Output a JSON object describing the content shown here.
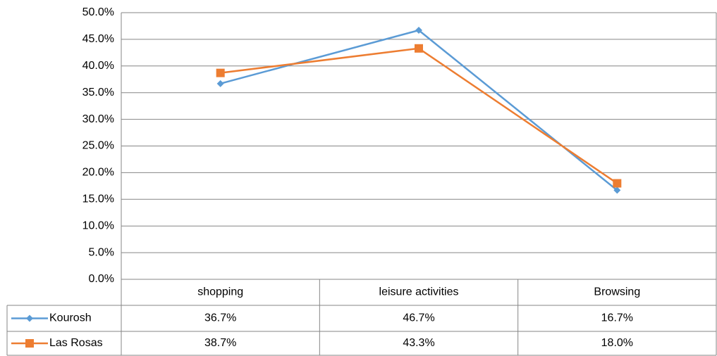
{
  "chart_data": {
    "type": "line",
    "categories": [
      "shopping",
      "leisure activities",
      "Browsing"
    ],
    "series": [
      {
        "name": "Kourosh",
        "color": "#5b9bd5",
        "marker": "diamond",
        "values": [
          36.7,
          46.7,
          16.7
        ],
        "value_labels": [
          "36.7%",
          "46.7%",
          "16.7%"
        ]
      },
      {
        "name": "Las Rosas",
        "color": "#ed7d31",
        "marker": "square",
        "values": [
          38.7,
          43.3,
          18.0
        ],
        "value_labels": [
          "38.7%",
          "43.3%",
          "18.0%"
        ]
      }
    ],
    "ylim": [
      0,
      50
    ],
    "yticks": [
      {
        "value": 0,
        "label": "0.0%"
      },
      {
        "value": 5,
        "label": "5.0%"
      },
      {
        "value": 10,
        "label": "10.0%"
      },
      {
        "value": 15,
        "label": "15.0%"
      },
      {
        "value": 20,
        "label": "20.0%"
      },
      {
        "value": 25,
        "label": "25.0%"
      },
      {
        "value": 30,
        "label": "30.0%"
      },
      {
        "value": 35,
        "label": "35.0%"
      },
      {
        "value": 40,
        "label": "40.0%"
      },
      {
        "value": 45,
        "label": "45.0%"
      },
      {
        "value": 50,
        "label": "50.0%"
      }
    ],
    "grid": true,
    "data_table": true
  }
}
